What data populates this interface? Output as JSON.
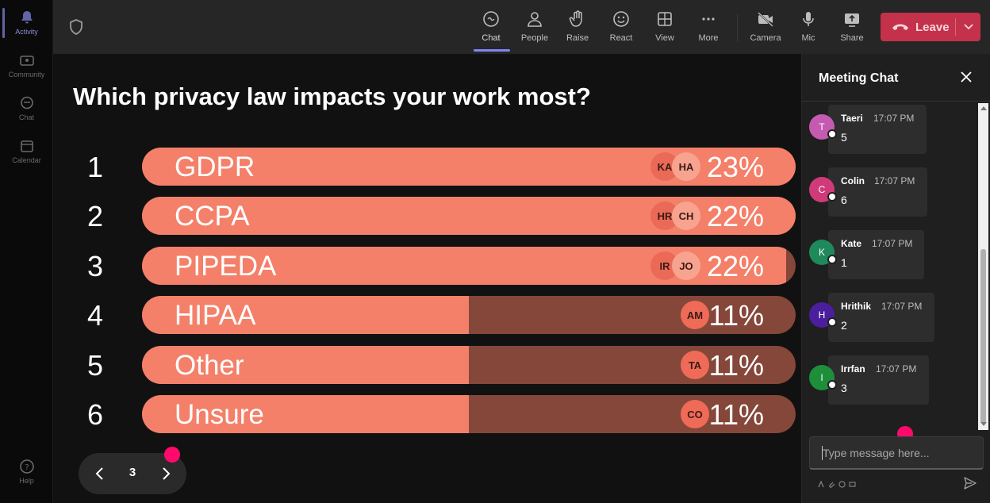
{
  "rail": {
    "items": [
      {
        "label": "Activity",
        "icon": "bell-icon",
        "active": true
      },
      {
        "label": "Community",
        "icon": "community-icon"
      },
      {
        "label": "Chat",
        "icon": "chat-icon"
      },
      {
        "label": "Calendar",
        "icon": "calendar-icon"
      }
    ],
    "help_label": "Help"
  },
  "toolbar": {
    "buttons": [
      {
        "label": "Chat",
        "icon": "chat-icon",
        "active": true
      },
      {
        "label": "People",
        "icon": "people-icon"
      },
      {
        "label": "Raise",
        "icon": "raise-hand-icon"
      },
      {
        "label": "React",
        "icon": "react-icon"
      },
      {
        "label": "View",
        "icon": "grid-view-icon"
      },
      {
        "label": "More",
        "icon": "more-icon"
      },
      {
        "label": "Camera",
        "icon": "camera-off-icon"
      },
      {
        "label": "Mic",
        "icon": "mic-icon"
      },
      {
        "label": "Share",
        "icon": "share-icon"
      }
    ],
    "leave_label": "Leave",
    "leave_color": "#c4314b"
  },
  "poll": {
    "question": "Which privacy law impacts your work most?",
    "options": [
      {
        "rank": "1",
        "label": "GDPR",
        "percent": "23%",
        "avatars": [
          "KA",
          "HA"
        ]
      },
      {
        "rank": "2",
        "label": "CCPA",
        "percent": "22%",
        "avatars": [
          "HR",
          "CH"
        ]
      },
      {
        "rank": "3",
        "label": "PIPEDA",
        "percent": "22%",
        "avatars": [
          "IR",
          "JO"
        ]
      },
      {
        "rank": "4",
        "label": "HIPAA",
        "percent": "11%",
        "avatars": [
          "AM"
        ]
      },
      {
        "rank": "5",
        "label": "Other",
        "percent": "11%",
        "avatars": [
          "TA"
        ]
      },
      {
        "rank": "6",
        "label": "Unsure",
        "percent": "11%",
        "avatars": [
          "CO"
        ]
      }
    ],
    "fill_color": "#f4806a",
    "track_color": "#84473a",
    "page": "3"
  },
  "chat": {
    "title": "Meeting Chat",
    "messages": [
      {
        "initial": "T",
        "name": "Taeri",
        "time": "17:07 PM",
        "text": "5",
        "color": "#c45bb0"
      },
      {
        "initial": "C",
        "name": "Colin",
        "time": "17:07 PM",
        "text": "6",
        "color": "#d13a78"
      },
      {
        "initial": "K",
        "name": "Kate",
        "time": "17:07 PM",
        "text": "1",
        "color": "#1e8a5c"
      },
      {
        "initial": "H",
        "name": "Hrithik",
        "time": "17:07 PM",
        "text": "2",
        "color": "#4b1e9e"
      },
      {
        "initial": "I",
        "name": "Irrfan",
        "time": "17:07 PM",
        "text": "3",
        "color": "#1d8e3a"
      }
    ],
    "input_placeholder": "Type message here..."
  },
  "accent_color": "#ff0a6c"
}
